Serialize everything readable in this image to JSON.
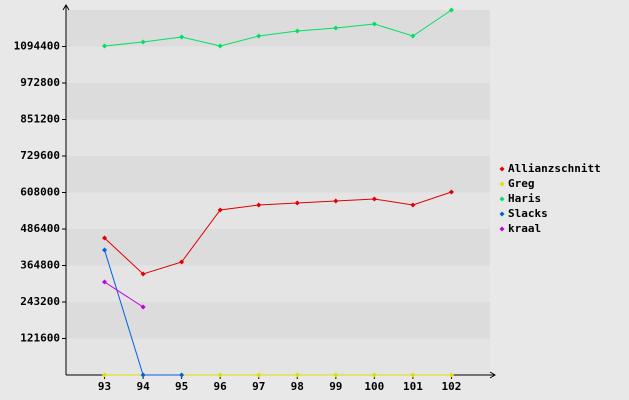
{
  "chart_data": {
    "type": "line",
    "x": [
      93,
      94,
      95,
      96,
      97,
      98,
      99,
      100,
      101,
      102
    ],
    "xlim": [
      92,
      103
    ],
    "xticks": [
      93,
      94,
      95,
      96,
      97,
      98,
      99,
      100,
      101,
      102
    ],
    "ylim": [
      0,
      1216000
    ],
    "yticks": [
      121600,
      243200,
      364800,
      486400,
      608000,
      729600,
      851200,
      972800,
      1094400
    ],
    "grid": true,
    "legend": "right",
    "series": [
      {
        "name": "Allianzschnitt",
        "color": "#e00000",
        "values": [
          456400,
          336500,
          376500,
          549700,
          566300,
          573000,
          579700,
          586300,
          566300,
          609700
        ]
      },
      {
        "name": "Greg",
        "color": "#e0e000",
        "values": [
          0,
          0,
          0,
          0,
          0,
          0,
          0,
          0,
          0,
          0
        ]
      },
      {
        "name": "Haris",
        "color": "#00e060",
        "values": [
          1096100,
          1109400,
          1126000,
          1096100,
          1129400,
          1146000,
          1156000,
          1169400,
          1129400,
          1216000
        ]
      },
      {
        "name": "Slacks",
        "color": "#0060e0",
        "values": [
          416400,
          0,
          0,
          null,
          null,
          null,
          null,
          null,
          null,
          null
        ]
      },
      {
        "name": "kraal",
        "color": "#c000e0",
        "values": [
          309800,
          226500,
          null,
          null,
          null,
          null,
          null,
          null,
          null,
          null
        ]
      }
    ]
  }
}
